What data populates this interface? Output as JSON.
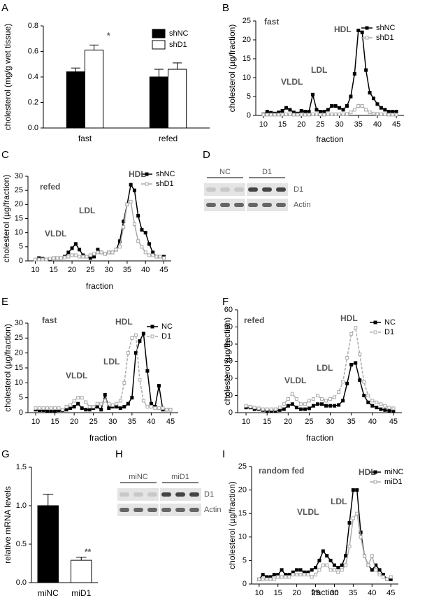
{
  "chart_data": [
    {
      "type": "bar",
      "panel": "A",
      "ylabel": "cholesterol (mg/g wet tissue)",
      "categories": [
        "fast",
        "refed"
      ],
      "series": [
        {
          "name": "shNC",
          "color": "#000000",
          "values": [
            0.44,
            0.4
          ],
          "errors": [
            0.03,
            0.06
          ]
        },
        {
          "name": "shD1",
          "color": "#ffffff",
          "values": [
            0.61,
            0.46
          ],
          "errors": [
            0.04,
            0.05
          ]
        }
      ],
      "ylim": [
        0,
        0.8
      ],
      "yticks": [
        {
          "value": 0,
          "label": "0.0"
        },
        0.2,
        0.4,
        0.6,
        0.8
      ],
      "annotations": [
        "*"
      ]
    },
    {
      "type": "line",
      "panel": "B",
      "ylabel": "cholesterol (µg/fraction)",
      "xlabel": "fraction",
      "x": [
        10,
        11,
        12,
        13,
        14,
        15,
        16,
        17,
        18,
        19,
        20,
        21,
        22,
        23,
        24,
        25,
        26,
        27,
        28,
        29,
        30,
        31,
        32,
        33,
        34,
        35,
        36,
        37,
        38,
        39,
        40,
        41,
        42,
        43,
        44,
        45
      ],
      "series": [
        {
          "name": "shNC",
          "color": "#000000",
          "values": [
            0.3,
            1,
            0.7,
            0.5,
            0.8,
            1.2,
            2,
            1.5,
            0.8,
            0.5,
            1.2,
            1,
            1,
            5.5,
            1.5,
            1,
            1,
            1.5,
            2.5,
            2.5,
            2,
            1.5,
            2.5,
            5,
            11,
            22.5,
            22,
            12,
            6,
            4.5,
            3,
            2,
            1.5,
            1,
            1,
            1
          ]
        },
        {
          "name": "shD1",
          "color": "#aaaaaa",
          "values": [
            0.2,
            0.2,
            0.2,
            0.2,
            0.2,
            0.2,
            0.3,
            0.3,
            0.2,
            0.2,
            0.2,
            0.2,
            0.2,
            0.3,
            0.3,
            0.2,
            0.2,
            0.3,
            0.3,
            0.3,
            0.3,
            0.3,
            0.4,
            0.8,
            1.5,
            2.5,
            2.5,
            1.5,
            0.8,
            0.5,
            0.4,
            0.3,
            0.3,
            0.2,
            0.2,
            0.2
          ]
        }
      ],
      "xlim": [
        8,
        47
      ],
      "xticks": [
        10,
        15,
        20,
        25,
        30,
        35,
        40,
        45
      ],
      "ylim": [
        0,
        25
      ],
      "yticks": [
        0,
        5,
        10,
        15,
        20,
        25
      ],
      "annotations": [
        "fast",
        "VLDL",
        "LDL",
        "HDL"
      ]
    },
    {
      "type": "line",
      "panel": "C",
      "ylabel": "cholesterol (µg/fraction)",
      "xlabel": "fraction",
      "x": [
        10,
        11,
        12,
        13,
        14,
        15,
        16,
        17,
        18,
        19,
        20,
        21,
        22,
        23,
        24,
        25,
        26,
        27,
        28,
        29,
        30,
        31,
        32,
        33,
        34,
        35,
        36,
        37,
        38,
        39,
        40,
        41,
        42,
        43,
        44,
        45
      ],
      "series": [
        {
          "name": "shNC",
          "color": "#000000",
          "values": [
            0.5,
            1,
            0.8,
            0.5,
            0.5,
            1,
            1,
            1,
            1.5,
            3,
            4.5,
            6,
            4,
            2,
            1.5,
            1,
            1.5,
            4,
            3,
            2.5,
            3,
            3,
            4,
            7,
            14,
            20,
            27,
            25,
            16,
            11,
            10,
            6,
            3,
            1.5,
            1.5,
            1.5
          ]
        },
        {
          "name": "shD1",
          "color": "#aaaaaa",
          "values": [
            0.5,
            0.5,
            0.5,
            0.5,
            0.8,
            1,
            1,
            1,
            1.2,
            1.5,
            2,
            2,
            1.5,
            1.5,
            1.5,
            2,
            2.5,
            3,
            3,
            2.5,
            3,
            3,
            4,
            5,
            12,
            20,
            21,
            13,
            7,
            5,
            3,
            2,
            2,
            1.5,
            1.5,
            1
          ]
        }
      ],
      "xlim": [
        8,
        47
      ],
      "xticks": [
        10,
        15,
        20,
        25,
        30,
        35,
        40,
        45
      ],
      "ylim": [
        0,
        30
      ],
      "yticks": [
        0,
        5,
        10,
        15,
        20,
        25,
        30
      ],
      "annotations": [
        "refed",
        "VLDL",
        "LDL",
        "HDL"
      ]
    },
    {
      "type": "blot",
      "panel": "D",
      "lanes": [
        "NC",
        "D1"
      ],
      "bands": [
        "D1",
        "Actin"
      ]
    },
    {
      "type": "line",
      "panel": "E",
      "ylabel": "cholesterol (µg/fraction)",
      "xlabel": "fraction",
      "x": [
        10,
        11,
        12,
        13,
        14,
        15,
        16,
        17,
        18,
        19,
        20,
        21,
        22,
        23,
        24,
        25,
        26,
        27,
        28,
        29,
        30,
        31,
        32,
        33,
        34,
        35,
        36,
        37,
        38,
        39,
        40,
        41,
        42,
        43,
        44,
        45
      ],
      "series": [
        {
          "name": "NC",
          "color": "#000000",
          "values": [
            1,
            0.8,
            0.8,
            0.5,
            0.5,
            0.5,
            0.8,
            0.8,
            1,
            1.5,
            2,
            3,
            1.5,
            1,
            1,
            1.5,
            2,
            1,
            6,
            1.5,
            2,
            2,
            1.5,
            2,
            3,
            5,
            20,
            24,
            26.5,
            14,
            3,
            2,
            9,
            1,
            1,
            1
          ]
        },
        {
          "name": "D1",
          "color": "#aaaaaa",
          "dashed": true,
          "values": [
            1.5,
            1.5,
            1.5,
            1.5,
            1.5,
            1.5,
            1.5,
            1,
            2,
            2.5,
            4,
            5,
            5,
            3.5,
            2,
            2,
            3,
            3,
            4,
            3,
            2.5,
            3,
            4,
            10,
            20,
            25,
            26,
            11,
            4,
            2,
            2,
            1.5,
            1.5,
            1.5,
            1,
            1
          ]
        }
      ],
      "xlim": [
        8,
        47
      ],
      "xticks": [
        10,
        15,
        20,
        25,
        30,
        35,
        40,
        45
      ],
      "ylim": [
        0,
        30
      ],
      "yticks": [
        0,
        5,
        10,
        15,
        20,
        25,
        30
      ],
      "annotations": [
        "fast",
        "VLDL",
        "LDL",
        "HDL"
      ]
    },
    {
      "type": "line",
      "panel": "F",
      "ylabel": "cholesterol (µg/fraction)",
      "xlabel": "fraction",
      "x": [
        10,
        11,
        12,
        13,
        14,
        15,
        16,
        17,
        18,
        19,
        20,
        21,
        22,
        23,
        24,
        25,
        26,
        27,
        28,
        29,
        30,
        31,
        32,
        33,
        34,
        35,
        36,
        37,
        38,
        39,
        40,
        41,
        42,
        43,
        44,
        45
      ],
      "series": [
        {
          "name": "NC",
          "color": "#000000",
          "values": [
            3,
            3,
            2,
            2,
            1.5,
            1,
            1,
            1,
            1.5,
            2,
            4,
            5,
            3,
            2,
            2,
            2.5,
            4,
            5,
            5,
            4,
            4,
            4,
            4.5,
            7,
            17,
            28,
            29,
            19,
            10,
            6,
            4,
            3,
            2,
            1.5,
            1,
            1
          ]
        },
        {
          "name": "D1",
          "color": "#aaaaaa",
          "dashed": true,
          "values": [
            4,
            3.5,
            3,
            2.5,
            2,
            2,
            2,
            2,
            3,
            5,
            8,
            11,
            8,
            5,
            5,
            7,
            8,
            10,
            8,
            7,
            8,
            9,
            12,
            18,
            32,
            46,
            49.5,
            34,
            18,
            10,
            7,
            6,
            5,
            4,
            3,
            2.5
          ]
        }
      ],
      "xlim": [
        8,
        47
      ],
      "xticks": [
        10,
        15,
        20,
        25,
        30,
        35,
        40,
        45
      ],
      "ylim": [
        0,
        60
      ],
      "yticks": [
        0,
        10,
        20,
        30,
        40,
        50,
        60
      ],
      "annotations": [
        "refed",
        "VLDL",
        "LDL",
        "HDL"
      ]
    },
    {
      "type": "bar",
      "panel": "G",
      "ylabel": "relative mRNA levels",
      "categories": [
        "miNC",
        "miD1"
      ],
      "series": [
        {
          "colors": [
            "#000000",
            "#ffffff"
          ],
          "values": [
            1.0,
            0.29
          ],
          "errors": [
            0.15,
            0.04
          ]
        }
      ],
      "ylim": [
        0,
        1.5
      ],
      "yticks": [
        {
          "value": 0,
          "label": "0.0"
        },
        0.5,
        {
          "value": 1,
          "label": "1.0"
        },
        1.5
      ],
      "annotations": [
        "**"
      ]
    },
    {
      "type": "blot",
      "panel": "H",
      "lanes": [
        "miNC",
        "miD1"
      ],
      "bands": [
        "D1",
        "Actin"
      ]
    },
    {
      "type": "line",
      "panel": "I",
      "ylabel": "cholesterol (µg/fraction)",
      "xlabel": "fraction",
      "x": [
        10,
        11,
        12,
        13,
        14,
        15,
        16,
        17,
        18,
        19,
        20,
        21,
        22,
        23,
        24,
        25,
        26,
        27,
        28,
        29,
        30,
        31,
        32,
        33,
        34,
        35,
        36,
        37,
        38,
        39,
        40,
        41,
        42,
        43,
        44,
        45
      ],
      "series": [
        {
          "name": "miNC",
          "color": "#000000",
          "values": [
            1,
            2,
            1.5,
            1.5,
            2,
            2,
            3,
            2,
            2,
            2.5,
            3,
            3,
            2.5,
            2.5,
            3,
            3.5,
            5,
            7,
            6,
            5,
            4,
            3.5,
            4,
            6,
            13,
            20,
            20,
            11,
            6,
            4,
            3,
            4,
            3,
            2,
            1,
            1
          ]
        },
        {
          "name": "miD1",
          "color": "#aaaaaa",
          "values": [
            1,
            1,
            1,
            1,
            1,
            1.5,
            1.5,
            1.5,
            1.5,
            2,
            2,
            2,
            2,
            2,
            1.5,
            2,
            3,
            4,
            4,
            3,
            3,
            2.5,
            3,
            4,
            8,
            14,
            15,
            10,
            6,
            4,
            6,
            3,
            2,
            1.5,
            1,
            1.5
          ]
        }
      ],
      "xlim": [
        8,
        47
      ],
      "xticks": [
        10,
        15,
        20,
        25,
        30,
        35,
        40,
        45
      ],
      "ylim": [
        0,
        25
      ],
      "yticks": [
        0,
        5,
        10,
        15,
        20,
        25
      ],
      "annotations": [
        "random fed",
        "VLDL",
        "LDL",
        "HDL"
      ]
    }
  ]
}
